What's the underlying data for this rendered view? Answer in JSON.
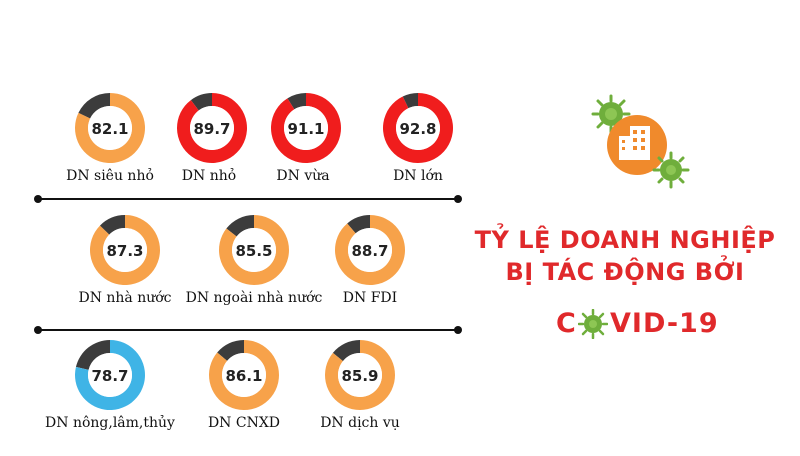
{
  "header": {
    "title_line1": "TỶ LỆ DOANH NGHIỆP",
    "title_line2": "BỊ TÁC ĐỘNG BỞI",
    "covid_c": "C",
    "covid_o": "O",
    "covid_rest": "VID-19"
  },
  "icons": {
    "emblem": "building-virus-icon",
    "covid_o": "virus-icon"
  },
  "colors": {
    "orange": "#f7a24a",
    "red": "#f01d1d",
    "blue": "#3fb4e6",
    "remainder": "#3c3c3c",
    "title": "#e0292b"
  },
  "chart_data": {
    "type": "pie",
    "variant": "donut",
    "unit": "%",
    "groups": [
      {
        "items": [
          {
            "label": "DN siêu nhỏ",
            "value": 82.1,
            "color": "orange"
          },
          {
            "label": "DN nhỏ",
            "value": 89.7,
            "color": "red"
          },
          {
            "label": "DN vừa",
            "value": 91.1,
            "color": "red"
          },
          {
            "label": "DN lớn",
            "value": 92.8,
            "color": "red"
          }
        ]
      },
      {
        "items": [
          {
            "label": "DN nhà nước",
            "value": 87.3,
            "color": "orange"
          },
          {
            "label": "DN ngoài nhà nước",
            "value": 85.5,
            "color": "orange"
          },
          {
            "label": "DN FDI",
            "value": 88.7,
            "color": "orange"
          }
        ]
      },
      {
        "items": [
          {
            "label": "DN nông,lâm,thủy",
            "value": 78.7,
            "color": "blue"
          },
          {
            "label": "DN CNXD",
            "value": 86.1,
            "color": "orange"
          },
          {
            "label": "DN dịch vụ",
            "value": 85.9,
            "color": "orange"
          }
        ]
      }
    ]
  }
}
